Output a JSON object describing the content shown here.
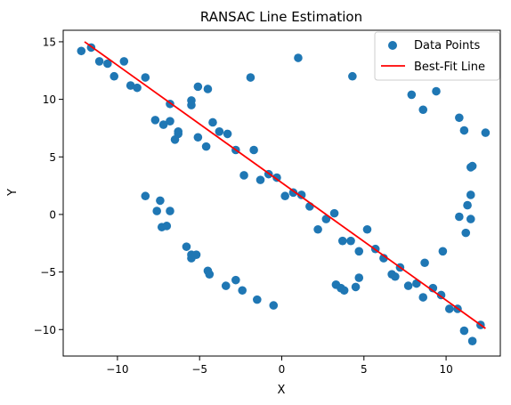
{
  "chart_data": {
    "type": "scatter",
    "title": "RANSAC Line Estimation",
    "xlabel": "X",
    "ylabel": "Y",
    "xlim": [
      -13.3,
      13.3
    ],
    "ylim": [
      -12.3,
      16.0
    ],
    "xticks": [
      -10,
      -5,
      0,
      5,
      10
    ],
    "yticks": [
      -10,
      -5,
      0,
      5,
      10,
      15
    ],
    "legend_position": "top-right",
    "series": [
      {
        "name": "Data Points",
        "type": "scatter",
        "color": "#1f77b4",
        "points": [
          [
            -12.2,
            14.2
          ],
          [
            -11.6,
            14.5
          ],
          [
            -11.1,
            13.3
          ],
          [
            -10.6,
            13.1
          ],
          [
            -10.2,
            12.0
          ],
          [
            -9.6,
            13.3
          ],
          [
            -9.2,
            11.2
          ],
          [
            -8.8,
            11.0
          ],
          [
            -8.3,
            11.9
          ],
          [
            -7.7,
            8.2
          ],
          [
            -7.2,
            7.8
          ],
          [
            -6.8,
            9.6
          ],
          [
            -6.8,
            8.1
          ],
          [
            -6.5,
            6.5
          ],
          [
            -6.3,
            7.2
          ],
          [
            -6.3,
            7.0
          ],
          [
            -5.5,
            9.9
          ],
          [
            -5.5,
            9.5
          ],
          [
            -5.1,
            11.1
          ],
          [
            -5.1,
            6.7
          ],
          [
            -4.6,
            5.9
          ],
          [
            -4.5,
            10.9
          ],
          [
            -4.2,
            8.0
          ],
          [
            -3.8,
            7.2
          ],
          [
            -3.3,
            7.0
          ],
          [
            -2.8,
            5.6
          ],
          [
            -2.3,
            3.4
          ],
          [
            -1.9,
            11.9
          ],
          [
            -1.7,
            5.6
          ],
          [
            -1.3,
            3.0
          ],
          [
            -0.8,
            3.5
          ],
          [
            -0.3,
            3.2
          ],
          [
            0.2,
            1.6
          ],
          [
            0.7,
            1.9
          ],
          [
            1.0,
            13.6
          ],
          [
            1.2,
            1.7
          ],
          [
            1.7,
            0.7
          ],
          [
            2.2,
            -1.3
          ],
          [
            2.7,
            -0.4
          ],
          [
            3.2,
            0.1
          ],
          [
            3.7,
            -2.3
          ],
          [
            4.2,
            -2.3
          ],
          [
            4.3,
            12.0
          ],
          [
            4.7,
            -3.2
          ],
          [
            5.2,
            -1.3
          ],
          [
            5.7,
            -3.0
          ],
          [
            6.2,
            -3.8
          ],
          [
            6.7,
            -5.2
          ],
          [
            6.9,
            -5.4
          ],
          [
            7.2,
            -4.6
          ],
          [
            7.7,
            -6.2
          ],
          [
            7.9,
            10.4
          ],
          [
            8.2,
            -6.0
          ],
          [
            8.6,
            -7.2
          ],
          [
            8.6,
            9.1
          ],
          [
            8.7,
            -4.2
          ],
          [
            9.2,
            -6.4
          ],
          [
            9.4,
            10.7
          ],
          [
            9.7,
            -7.0
          ],
          [
            9.8,
            -3.2
          ],
          [
            10.2,
            -8.2
          ],
          [
            10.7,
            -8.2
          ],
          [
            10.8,
            8.4
          ],
          [
            10.8,
            -0.2
          ],
          [
            11.1,
            7.3
          ],
          [
            11.1,
            -10.1
          ],
          [
            11.2,
            -1.6
          ],
          [
            11.3,
            0.8
          ],
          [
            11.5,
            4.1
          ],
          [
            11.6,
            4.2
          ],
          [
            11.5,
            1.7
          ],
          [
            11.5,
            -0.4
          ],
          [
            11.6,
            -11.0
          ],
          [
            12.1,
            -9.6
          ],
          [
            12.4,
            7.1
          ],
          [
            -8.3,
            1.6
          ],
          [
            -7.6,
            0.3
          ],
          [
            -7.4,
            1.2
          ],
          [
            -7.3,
            -1.1
          ],
          [
            -7.0,
            -1.0
          ],
          [
            -6.8,
            0.3
          ],
          [
            -5.8,
            -2.8
          ],
          [
            -5.5,
            -3.5
          ],
          [
            -5.5,
            -3.8
          ],
          [
            -5.2,
            -3.5
          ],
          [
            -4.5,
            -4.9
          ],
          [
            -4.4,
            -5.2
          ],
          [
            -3.4,
            -6.2
          ],
          [
            -2.8,
            -5.7
          ],
          [
            -2.4,
            -6.6
          ],
          [
            -1.5,
            -7.4
          ],
          [
            -0.5,
            -7.9
          ],
          [
            3.3,
            -6.1
          ],
          [
            3.6,
            -6.4
          ],
          [
            3.8,
            -6.6
          ],
          [
            4.5,
            -6.3
          ],
          [
            4.7,
            -5.5
          ]
        ]
      },
      {
        "name": "Best-Fit Line",
        "type": "line",
        "color": "#ff0000",
        "x": [
          -12.0,
          12.4
        ],
        "y": [
          15.0,
          -9.9
        ]
      }
    ]
  }
}
